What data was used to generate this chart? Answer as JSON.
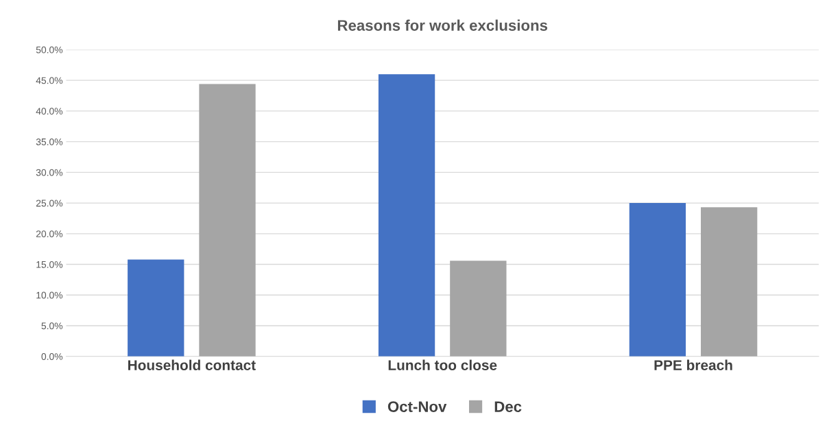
{
  "chart_data": {
    "type": "bar",
    "title": "Reasons for work exclusions",
    "categories": [
      "Household contact",
      "Lunch too close",
      "PPE breach"
    ],
    "series": [
      {
        "name": "Oct-Nov",
        "color": "#4472c4",
        "values": [
          15.8,
          46.0,
          25.0
        ]
      },
      {
        "name": "Dec",
        "color": "#a5a5a5",
        "values": [
          44.4,
          15.6,
          24.3
        ]
      }
    ],
    "ylim": [
      0,
      50
    ],
    "yticks": [
      {
        "value": 0,
        "label": "0.0%"
      },
      {
        "value": 5,
        "label": "5.0%"
      },
      {
        "value": 10,
        "label": "10.0%"
      },
      {
        "value": 15,
        "label": "15.0%"
      },
      {
        "value": 20,
        "label": "20.0%"
      },
      {
        "value": 25,
        "label": "25.0%"
      },
      {
        "value": 30,
        "label": "30.0%"
      },
      {
        "value": 35,
        "label": "35.0%"
      },
      {
        "value": 40,
        "label": "40.0%"
      },
      {
        "value": 45,
        "label": "45.0%"
      },
      {
        "value": 50,
        "label": "50.0%"
      }
    ],
    "grid": "y",
    "legend": "bottom"
  }
}
